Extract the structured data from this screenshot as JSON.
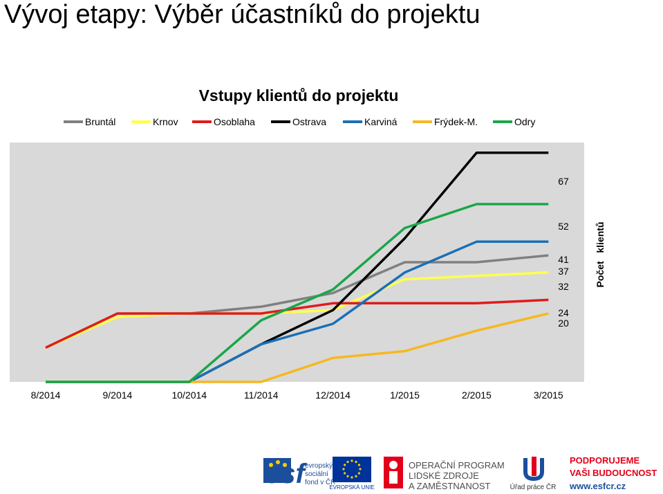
{
  "slide": {
    "title": "Vývoj etapy: Výběr účastníků do projektu"
  },
  "chart_data": {
    "type": "line",
    "title": "Vstupy klientů do projektu",
    "ylabel": "Počet   klientů",
    "x": [
      "8/2014",
      "9/2014",
      "10/2014",
      "11/2014",
      "12/2014",
      "1/2015",
      "2/2015",
      "3/2015"
    ],
    "ylim": [
      0,
      70
    ],
    "grid": false,
    "legend": "top",
    "background": "#d9d9d9",
    "series": [
      {
        "name": "Bruntál",
        "color": "#808080",
        "values": [
          10,
          20,
          20,
          22,
          26,
          35,
          35,
          37
        ]
      },
      {
        "name": "Krnov",
        "color": "#ffff4d",
        "values": [
          10,
          19,
          20,
          20,
          21,
          30,
          31,
          32
        ]
      },
      {
        "name": "Osoblaha",
        "color": "#e01b1b",
        "values": [
          10,
          20,
          20,
          20,
          23,
          23,
          23,
          24
        ]
      },
      {
        "name": "Ostrava",
        "color": "#000000",
        "values": [
          0,
          0,
          0,
          11,
          21,
          42,
          67,
          67
        ]
      },
      {
        "name": "Karviná",
        "color": "#1a6fb5",
        "values": [
          0,
          0,
          0,
          11,
          17,
          32,
          41,
          41
        ]
      },
      {
        "name": "Frýdek-M.",
        "color": "#f5b820",
        "values": [
          0,
          0,
          0,
          0,
          7,
          9,
          15,
          20
        ]
      },
      {
        "name": "Odry",
        "color": "#1aa64a",
        "values": [
          0,
          0,
          0,
          18,
          27,
          45,
          52,
          52
        ]
      }
    ],
    "end_labels": [
      "67",
      "52",
      "41",
      "37",
      "32",
      "24",
      "20"
    ]
  },
  "logos": {
    "esf_big": "esf",
    "esf_lines": [
      "evropský",
      "sociální",
      "fond v ČR"
    ],
    "eu_label": "EVROPSKÁ UNIE",
    "op_lines": [
      "OPERAČNÍ PROGRAM",
      "LIDSKÉ ZDROJE",
      "A ZAMĚSTNANOST"
    ],
    "up_label": "Úřad práce ČR",
    "slogan_lines": [
      "PODPORUJEME",
      "VAŠI BUDOUCNOST"
    ],
    "website": "www.esfcr.cz",
    "colors": {
      "esf_blue": "#1b4f9c",
      "eu_blue": "#003399",
      "eu_star": "#ffcc00",
      "op_red": "#e2001a",
      "slogan_red": "#e2001a",
      "text_grey": "#4d4d4d"
    }
  }
}
